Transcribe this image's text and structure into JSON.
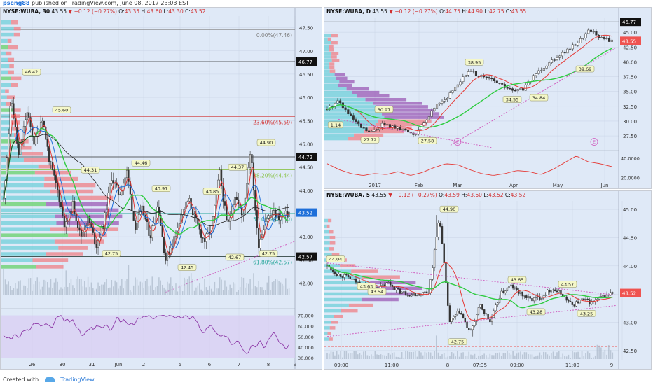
{
  "header": {
    "user": "pseng88",
    "published": "published on TradingView.com, June 08, 2017 23:03 EST"
  },
  "footer": {
    "created": "Created with",
    "brand": "TradingView"
  },
  "colors": {
    "up": "#26a69a",
    "down": "#ef5350",
    "ma_fast": "#e53935",
    "ma_mid": "#1e6fd9",
    "ma_slow": "#2ecc40",
    "ma_long": "#222222",
    "trend": "#d060c0",
    "panel_bg": "#dfe9f7"
  },
  "panels": {
    "p30": {
      "symbol": "NYSE:WUBA, 30",
      "price": "43.55",
      "change": "▼ −0.12 (−0.27%)",
      "o": "43.35",
      "h": "43.60",
      "l": "43.30",
      "c": "43.52",
      "labels": [
        "O:",
        "H:",
        "L:",
        "C:"
      ],
      "xticks": [
        "26",
        "30",
        "31",
        "Jun",
        "2",
        "5",
        "6",
        "7",
        "8",
        "9"
      ],
      "yticks": [
        "47.50",
        "47.00",
        "46.50",
        "46.00",
        "45.50",
        "45.00",
        "44.50",
        "44.00",
        "43.50",
        "43.00",
        "42.50",
        "42.00"
      ],
      "badges": [
        "46.77",
        "44.72",
        "43.52",
        "42.57"
      ],
      "fib": [
        "0.00%(47.46)",
        "23.60%(45.59)",
        "38.20%(44.44)",
        "50.00%(43.50)",
        "61.80%(42.57)"
      ],
      "callouts": [
        "46.42",
        "45.60",
        "44.31",
        "44.46",
        "43.91",
        "43.85",
        "44.37",
        "44.90",
        "42.75",
        "42.45",
        "42.67",
        "42.75"
      ],
      "rsi_ticks": [
        "70.000",
        "60.000",
        "50.000",
        "40.000",
        "30.000"
      ]
    },
    "pD": {
      "symbol": "NYSE:WUBA, D",
      "price": "43.55",
      "change": "▼ −0.12 (−0.27%)",
      "o": "44.75",
      "h": "44.90",
      "l": "42.75",
      "c": "43.55",
      "labels": [
        "O:",
        "H:",
        "L:",
        "C:"
      ],
      "xticks": [
        "2017",
        "Feb",
        "Mar",
        "Apr",
        "May",
        "Jun"
      ],
      "yticks": [
        "45.00",
        "42.50",
        "40.00",
        "37.50",
        "35.00",
        "32.50",
        "30.00",
        "27.50"
      ],
      "badges": [
        "46.77",
        "43.55"
      ],
      "callouts": [
        "38.95",
        "30.97",
        "27.72",
        "27.58",
        "34.55",
        "34.84",
        "39.69",
        "1.14"
      ],
      "events": [
        "E",
        "E"
      ],
      "osc_ticks": [
        "40.0000",
        "20.0000"
      ]
    },
    "p5": {
      "symbol": "NYSE:WUBA, 5",
      "price": "43.55",
      "change": "▼ −0.12 (−0.27%)",
      "o": "43.59",
      "h": "43.60",
      "l": "43.52",
      "c": "43.52",
      "labels": [
        "O:",
        "H:",
        "L:",
        "C:"
      ],
      "xticks": [
        "09:00",
        "11:00",
        "8",
        "07:35",
        "09:00",
        "11:00",
        "9"
      ],
      "yticks": [
        "45.00",
        "44.50",
        "44.00",
        "43.50",
        "43.00",
        "42.50"
      ],
      "badges": [
        "43.52"
      ],
      "callouts": [
        "44.90",
        "44.04",
        "43.65",
        "43.57",
        "43.28",
        "43.25",
        "42.75",
        "43.63",
        "43.54"
      ]
    }
  },
  "chart_data": [
    {
      "type": "candlestick",
      "title": "NYSE:WUBA, 30",
      "x": [
        "26",
        "30",
        "31",
        "Jun",
        "2",
        "5",
        "6",
        "7",
        "8",
        "9"
      ],
      "ylim": [
        41.75,
        47.75
      ],
      "close_approx": [
        44.8,
        45.3,
        44.3,
        43.3,
        43.9,
        43.0,
        42.9,
        43.7,
        43.4,
        43.52
      ],
      "overlays": [
        "SMA short",
        "SMA mid",
        "SMA long",
        "volume profile",
        "Fibonacci retracement"
      ],
      "fib_levels": {
        "0.00%": 47.46,
        "23.60%": 45.59,
        "38.20%": 44.44,
        "50.00%": 43.5,
        "61.80%": 42.57
      },
      "indicator": {
        "name": "RSI",
        "ylim": [
          30,
          75
        ],
        "ticks": [
          70,
          60,
          50,
          40,
          30
        ]
      }
    },
    {
      "type": "candlestick",
      "title": "NYSE:WUBA, D",
      "x": [
        "2017",
        "Feb",
        "Mar",
        "Apr",
        "May",
        "Jun"
      ],
      "ylim": [
        25.5,
        47.5
      ],
      "close_approx": [
        32.0,
        28.5,
        35.5,
        36.5,
        41.0,
        43.55
      ],
      "overlays": [
        "SMA",
        "SMA",
        "volume profile",
        "trendline"
      ],
      "indicator": {
        "name": "oscillator",
        "ticks": [
          40,
          20
        ]
      }
    },
    {
      "type": "candlestick",
      "title": "NYSE:WUBA, 5",
      "x": [
        "09:00",
        "11:00",
        "8",
        "07:35",
        "09:00",
        "11:00",
        "9"
      ],
      "ylim": [
        42.35,
        45.15
      ],
      "close_approx": [
        43.9,
        43.7,
        43.5,
        43.0,
        43.6,
        43.4,
        43.52
      ],
      "overlays": [
        "SMA",
        "SMA",
        "volume profile",
        "trend channel"
      ]
    }
  ]
}
